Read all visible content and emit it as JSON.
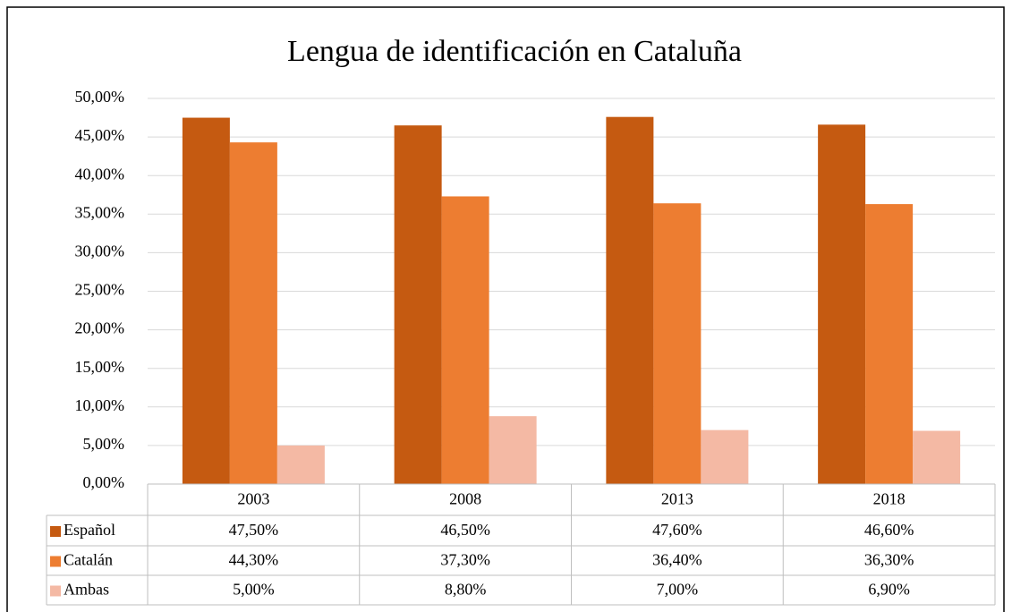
{
  "chart_data": {
    "type": "bar",
    "title": "Lengua de identificación en Cataluña",
    "categories": [
      "2003",
      "2008",
      "2013",
      "2018"
    ],
    "series": [
      {
        "name": "Español",
        "color": "#c55a11",
        "values": [
          47.5,
          46.5,
          47.6,
          46.6
        ],
        "value_labels": [
          "47,50%",
          "46,50%",
          "47,60%",
          "46,60%"
        ]
      },
      {
        "name": "Catalán",
        "color": "#ed7d31",
        "values": [
          44.3,
          37.3,
          36.4,
          36.3
        ],
        "value_labels": [
          "44,30%",
          "37,30%",
          "36,40%",
          "36,30%"
        ]
      },
      {
        "name": "Ambas",
        "color": "#f4b9a4",
        "values": [
          5.0,
          8.8,
          7.0,
          6.9
        ],
        "value_labels": [
          "5,00%",
          "8,80%",
          "7,00%",
          "6,90%"
        ]
      }
    ],
    "ylim": [
      0,
      50
    ],
    "yticks": [
      {
        "value": 0,
        "label": "0,00%"
      },
      {
        "value": 5,
        "label": "5,00%"
      },
      {
        "value": 10,
        "label": "10,00%"
      },
      {
        "value": 15,
        "label": "15,00%"
      },
      {
        "value": 20,
        "label": "20,00%"
      },
      {
        "value": 25,
        "label": "25,00%"
      },
      {
        "value": 30,
        "label": "30,00%"
      },
      {
        "value": 35,
        "label": "35,00%"
      },
      {
        "value": 40,
        "label": "40,00%"
      },
      {
        "value": 45,
        "label": "45,00%"
      },
      {
        "value": 50,
        "label": "50,00%"
      }
    ],
    "grid": true
  }
}
